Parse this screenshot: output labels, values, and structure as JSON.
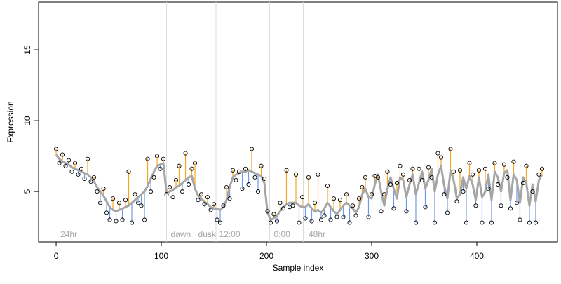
{
  "chart_data": {
    "type": "scatter",
    "xlabel": "Sample index",
    "ylabel": "Expression",
    "xlim": [
      -16.7,
      476.7
    ],
    "ylim": [
      1.44,
      18.37
    ],
    "xticks": [
      0,
      100,
      200,
      300,
      400
    ],
    "yticks": [
      5,
      10,
      15
    ],
    "point_color": "#000000",
    "line_color": "#a6a6a6",
    "above_color": "#f5a623",
    "below_color": "#6f9be6",
    "vline_color": "#dcdcdc",
    "annotation_color": "#a8a8a8",
    "vlines": [
      105,
      133,
      152,
      203,
      235
    ],
    "annotations": [
      {
        "x": 2,
        "label": "24hr"
      },
      {
        "x": 107,
        "label": "dawn"
      },
      {
        "x": 133,
        "label": "dusk"
      },
      {
        "x": 153,
        "label": "12:00"
      },
      {
        "x": 205,
        "label": "0:00"
      },
      {
        "x": 238,
        "label": "48hr"
      }
    ],
    "x": [
      0,
      3,
      6,
      9,
      12,
      15,
      18,
      21,
      24,
      27,
      30,
      33,
      36,
      39,
      42,
      45,
      48,
      51,
      54,
      57,
      60,
      63,
      66,
      69,
      72,
      75,
      78,
      81,
      84,
      87,
      90,
      93,
      96,
      99,
      102,
      105,
      108,
      111,
      114,
      117,
      120,
      123,
      126,
      129,
      132,
      135,
      138,
      141,
      144,
      147,
      150,
      153,
      156,
      159,
      162,
      165,
      168,
      171,
      174,
      177,
      180,
      183,
      186,
      189,
      192,
      195,
      198,
      201,
      204,
      207,
      210,
      213,
      216,
      219,
      222,
      225,
      228,
      231,
      234,
      237,
      240,
      243,
      246,
      249,
      252,
      255,
      258,
      261,
      264,
      267,
      270,
      273,
      276,
      279,
      282,
      285,
      288,
      291,
      294,
      297,
      300,
      303,
      306,
      309,
      312,
      315,
      318,
      321,
      324,
      327,
      330,
      333,
      336,
      339,
      342,
      345,
      348,
      351,
      354,
      357,
      360,
      363,
      366,
      369,
      372,
      375,
      378,
      381,
      384,
      387,
      390,
      393,
      396,
      399,
      402,
      405,
      408,
      411,
      414,
      417,
      420,
      423,
      426,
      429,
      432,
      435,
      438,
      441,
      444,
      447,
      450,
      453,
      456,
      459,
      462
    ],
    "values": [
      8.0,
      7.0,
      7.6,
      6.8,
      7.2,
      6.4,
      7.0,
      6.2,
      6.6,
      5.9,
      7.3,
      5.7,
      6.0,
      5.0,
      4.2,
      5.2,
      3.5,
      3.0,
      4.5,
      2.9,
      4.2,
      3.0,
      4.4,
      6.4,
      2.8,
      4.8,
      4.2,
      4.0,
      3.0,
      7.3,
      5.0,
      6.0,
      7.5,
      6.6,
      7.3,
      4.8,
      5.3,
      4.6,
      5.8,
      6.8,
      5.0,
      7.7,
      5.5,
      6.6,
      7.0,
      4.4,
      4.8,
      4.1,
      4.6,
      3.7,
      4.1,
      3.0,
      2.8,
      4.0,
      5.3,
      4.5,
      6.5,
      5.8,
      6.4,
      5.2,
      6.6,
      5.5,
      8.0,
      6.0,
      5.0,
      6.8,
      5.9,
      3.6,
      2.8,
      3.4,
      2.9,
      4.2,
      3.8,
      6.5,
      3.9,
      4.0,
      6.2,
      2.8,
      4.6,
      3.1,
      6.0,
      2.9,
      4.2,
      6.2,
      3.0,
      3.3,
      5.4,
      3.0,
      4.5,
      3.2,
      4.4,
      3.2,
      4.8,
      2.8,
      4.0,
      3.3,
      4.5,
      5.3,
      6.0,
      3.2,
      4.8,
      6.1,
      6.0,
      3.6,
      4.8,
      6.4,
      5.5,
      3.8,
      5.6,
      6.8,
      6.2,
      3.6,
      5.8,
      6.6,
      2.8,
      6.6,
      5.8,
      3.9,
      6.7,
      6.0,
      2.8,
      7.7,
      7.4,
      4.8,
      3.5,
      8.0,
      6.4,
      4.3,
      6.5,
      5.0,
      2.8,
      7.0,
      6.2,
      4.0,
      6.5,
      2.8,
      6.6,
      5.2,
      2.8,
      7.0,
      5.5,
      4.0,
      6.9,
      6.0,
      3.8,
      7.1,
      4.2,
      3.0,
      5.6,
      6.8,
      2.8,
      5.0,
      2.8,
      6.2,
      6.6
    ],
    "fitted": [
      7.6,
      7.3,
      7.1,
      7.0,
      6.9,
      6.7,
      6.6,
      6.5,
      6.4,
      6.3,
      6.2,
      6.0,
      5.7,
      5.3,
      5.0,
      4.7,
      4.3,
      3.9,
      3.7,
      3.6,
      3.7,
      3.8,
      3.9,
      4.0,
      4.2,
      4.4,
      4.6,
      4.8,
      5.0,
      5.4,
      5.9,
      6.4,
      6.8,
      6.9,
      7.0,
      4.9,
      5.0,
      5.1,
      5.3,
      5.4,
      5.6,
      5.8,
      6.0,
      6.1,
      5.2,
      4.7,
      4.5,
      4.3,
      4.1,
      3.9,
      3.8,
      3.8,
      3.7,
      3.9,
      4.4,
      5.3,
      6.0,
      6.2,
      6.3,
      6.4,
      6.4,
      6.5,
      6.4,
      6.3,
      6.2,
      6.1,
      5.6,
      3.5,
      3.0,
      3.1,
      3.3,
      3.6,
      3.9,
      4.1,
      4.2,
      4.2,
      4.2,
      4.0,
      3.9,
      3.9,
      4.1,
      3.8,
      3.6,
      3.7,
      3.5,
      3.8,
      4.2,
      3.9,
      3.6,
      3.4,
      3.7,
      4.0,
      4.2,
      4.0,
      3.8,
      3.5,
      3.9,
      4.8,
      5.2,
      4.6,
      4.5,
      5.5,
      6.2,
      5.0,
      4.0,
      5.2,
      6.0,
      5.2,
      4.5,
      6.0,
      5.8,
      4.6,
      5.5,
      6.2,
      4.8,
      5.6,
      6.4,
      5.2,
      5.8,
      6.6,
      5.0,
      6.2,
      6.8,
      5.4,
      4.5,
      6.5,
      5.8,
      4.5,
      4.8,
      6.0,
      5.2,
      6.1,
      5.5,
      4.4,
      6.0,
      4.6,
      5.0,
      6.2,
      4.4,
      6.4,
      6.0,
      5.0,
      6.3,
      6.5,
      4.4,
      6.2,
      5.8,
      4.2,
      6.0,
      5.6,
      4.0,
      5.5,
      4.3,
      5.8,
      6.2
    ]
  }
}
